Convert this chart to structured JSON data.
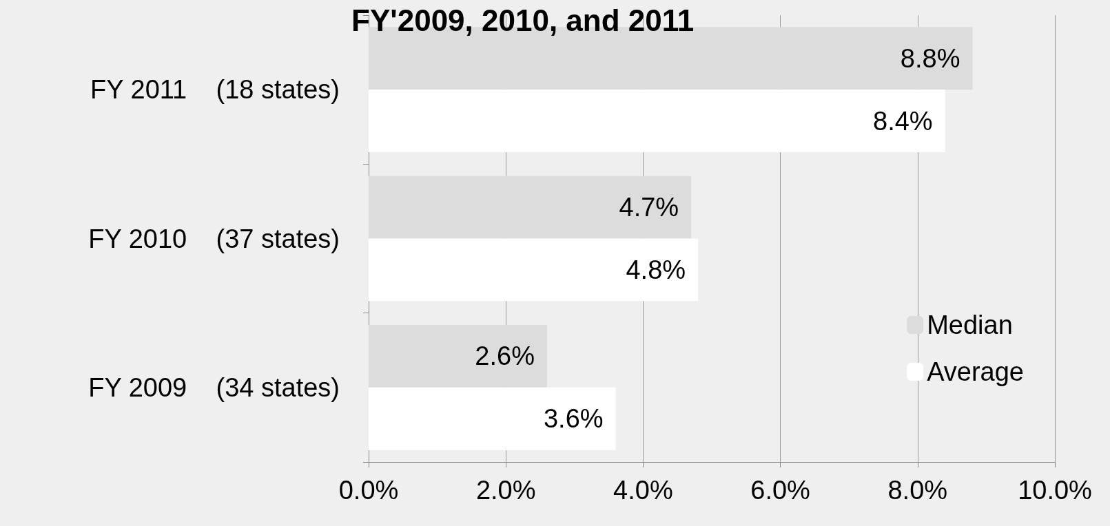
{
  "chart_data": {
    "type": "bar",
    "orientation": "horizontal",
    "title": "FY'2009, 2010, and 2011",
    "categories": [
      "FY 2011      (18 states)",
      "FY 2010      (37 states)",
      "FY 2009      (34 states)"
    ],
    "series": [
      {
        "name": "Median",
        "color": "#dcdcdc",
        "values": [
          8.8,
          4.7,
          2.6
        ],
        "value_labels": [
          "8.8%",
          "4.7%",
          "2.6%"
        ]
      },
      {
        "name": "Average",
        "color": "#ffffff",
        "values": [
          8.4,
          4.8,
          3.6
        ],
        "value_labels": [
          "8.4%",
          "4.8%",
          "3.6%"
        ]
      }
    ],
    "xlim": [
      0,
      10
    ],
    "xticks": [
      {
        "value": 0,
        "label": "0.0%"
      },
      {
        "value": 2,
        "label": "2.0%"
      },
      {
        "value": 4,
        "label": "4.0%"
      },
      {
        "value": 6,
        "label": "6.0%"
      },
      {
        "value": 8,
        "label": "8.0%"
      },
      {
        "value": 10,
        "label": "10.0%"
      }
    ],
    "grid": "x",
    "legend": "bottom right"
  }
}
